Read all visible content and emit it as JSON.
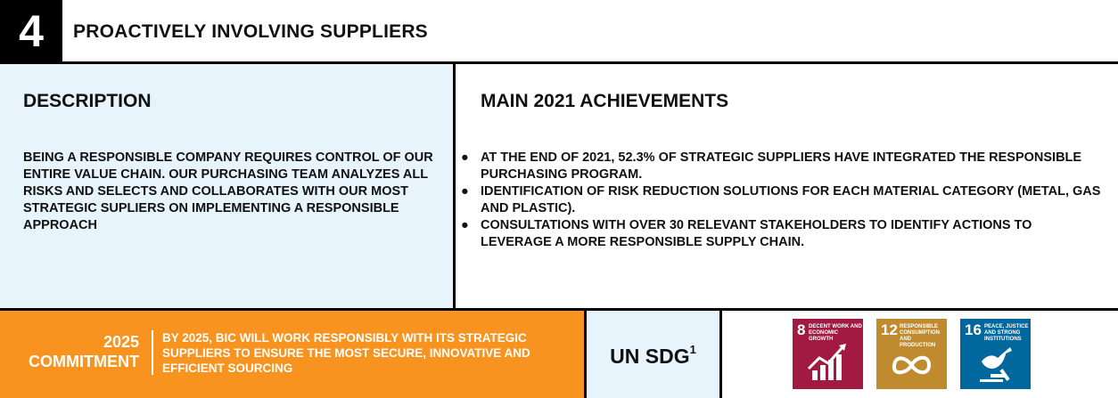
{
  "header": {
    "number": "4",
    "title": "PROACTIVELY INVOLVING SUPPLIERS"
  },
  "description": {
    "title": "DESCRIPTION",
    "text": "BEING A RESPONSIBLE COMPANY REQUIRES CONTROL OF OUR ENTIRE VALUE CHAIN. OUR PURCHASING TEAM ANALYZES ALL RISKS AND SELECTS AND COLLABORATES WITH OUR MOST STRATEGIC SUPLIERS ON IMPLEMENTING A RESPONSIBLE APPROACH"
  },
  "achievements": {
    "title": "MAIN 2021 ACHIEVEMENTS",
    "items": [
      "AT THE END OF 2021, 52.3% OF STRATEGIC SUPPLIERS HAVE INTEGRATED THE RESPONSIBLE PURCHASING PROGRAM.",
      "IDENTIFICATION OF RISK REDUCTION SOLUTIONS FOR EACH MATERIAL CATEGORY (METAL, GAS AND PLASTIC).",
      "CONSULTATIONS WITH OVER 30 RELEVANT STAKEHOLDERS TO IDENTIFY ACTIONS TO LEVERAGE A MORE RESPONSIBLE SUPPLY CHAIN."
    ]
  },
  "commitment": {
    "year": "2025",
    "label": "COMMITMENT",
    "text": "BY 2025, BIC WILL WORK RESPONSIBLY WITH ITS STRATEGIC SUPPLIERS TO ENSURE THE MOST SECURE, INNOVATIVE AND EFFICIENT SOURCING"
  },
  "un_sdg": {
    "label": "UN SDG",
    "footnote": "1",
    "goals": [
      {
        "number": "8",
        "name_line1": "DECENT WORK AND",
        "name_line2": "ECONOMIC GROWTH",
        "name_line3": "",
        "color": "#a21942",
        "icon": "growth-chart-icon"
      },
      {
        "number": "12",
        "name_line1": "RESPONSIBLE",
        "name_line2": "CONSUMPTION",
        "name_line3": "AND PRODUCTION",
        "color": "#bf8b2e",
        "icon": "infinity-loop-icon"
      },
      {
        "number": "16",
        "name_line1": "PEACE, JUSTICE",
        "name_line2": "AND STRONG",
        "name_line3": "INSTITUTIONS",
        "color": "#00689d",
        "icon": "dove-gavel-icon"
      }
    ]
  }
}
